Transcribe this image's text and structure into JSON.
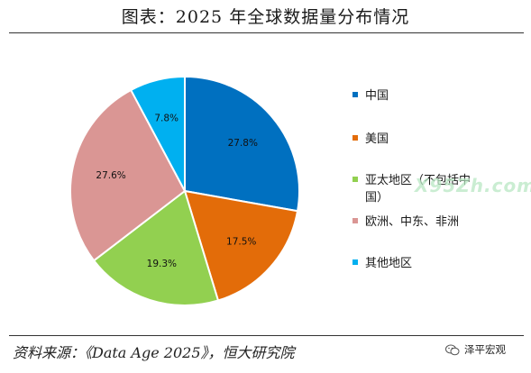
{
  "title": "图表：2025 年全球数据量分布情况",
  "source": "资料来源：《Data Age 2025》，恒大研究院",
  "watermark_badge": "泽平宏观",
  "watermark_site": "X95Zh.com",
  "chart_data": {
    "type": "pie",
    "unit": "%",
    "slices": [
      {
        "label": "中国",
        "value": 27.8,
        "value_label": "27.8%",
        "color": "#0070C0"
      },
      {
        "label": "美国",
        "value": 17.5,
        "value_label": "17.5%",
        "color": "#E36C09"
      },
      {
        "label": "亚太地区（不包括中国）",
        "value": 19.3,
        "value_label": "19.3%",
        "color": "#92D050"
      },
      {
        "label": "欧洲、中东、非洲",
        "value": 27.6,
        "value_label": "27.6%",
        "color": "#DA9694"
      },
      {
        "label": "其他地区",
        "value": 7.8,
        "value_label": "7.8%",
        "color": "#00B0F0"
      }
    ],
    "legend": {
      "position": "right",
      "entries": [
        {
          "lines": [
            "中国"
          ],
          "color": "#0070C0"
        },
        {
          "lines": [
            "美国"
          ],
          "color": "#E36C09"
        },
        {
          "lines": [
            "亚太地区（不包括中",
            "国）"
          ],
          "color": "#92D050"
        },
        {
          "lines": [
            "欧洲、中东、非洲"
          ],
          "color": "#DA9694"
        },
        {
          "lines": [
            "其他地区"
          ],
          "color": "#00B0F0"
        }
      ]
    }
  }
}
